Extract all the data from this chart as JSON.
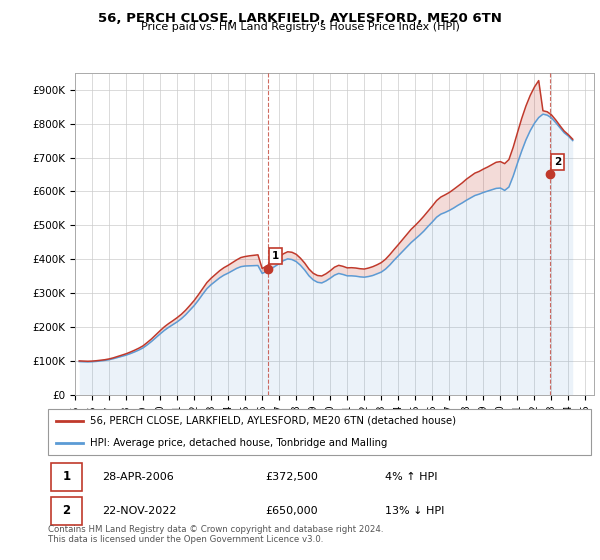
{
  "title": "56, PERCH CLOSE, LARKFIELD, AYLESFORD, ME20 6TN",
  "subtitle": "Price paid vs. HM Land Registry's House Price Index (HPI)",
  "ylabel_ticks": [
    "£0",
    "£100K",
    "£200K",
    "£300K",
    "£400K",
    "£500K",
    "£600K",
    "£700K",
    "£800K",
    "£900K"
  ],
  "ytick_values": [
    0,
    100000,
    200000,
    300000,
    400000,
    500000,
    600000,
    700000,
    800000,
    900000
  ],
  "ylim": [
    0,
    950000
  ],
  "xlim_start": 1995.0,
  "xlim_end": 2025.5,
  "legend_label1": "56, PERCH CLOSE, LARKFIELD, AYLESFORD, ME20 6TN (detached house)",
  "legend_label2": "HPI: Average price, detached house, Tonbridge and Malling",
  "color_red": "#c0392b",
  "color_blue": "#5b9bd5",
  "annotation1_label": "1",
  "annotation1_date": "28-APR-2006",
  "annotation1_price": "£372,500",
  "annotation1_hpi": "4% ↑ HPI",
  "annotation2_label": "2",
  "annotation2_date": "22-NOV-2022",
  "annotation2_price": "£650,000",
  "annotation2_hpi": "13% ↓ HPI",
  "footer": "Contains HM Land Registry data © Crown copyright and database right 2024.\nThis data is licensed under the Open Government Licence v3.0.",
  "hpi_blue": {
    "years": [
      1995.25,
      1995.5,
      1995.75,
      1996.0,
      1996.25,
      1996.5,
      1996.75,
      1997.0,
      1997.25,
      1997.5,
      1997.75,
      1998.0,
      1998.25,
      1998.5,
      1998.75,
      1999.0,
      1999.25,
      1999.5,
      1999.75,
      2000.0,
      2000.25,
      2000.5,
      2000.75,
      2001.0,
      2001.25,
      2001.5,
      2001.75,
      2002.0,
      2002.25,
      2002.5,
      2002.75,
      2003.0,
      2003.25,
      2003.5,
      2003.75,
      2004.0,
      2004.25,
      2004.5,
      2004.75,
      2005.0,
      2005.25,
      2005.5,
      2005.75,
      2006.0,
      2006.25,
      2006.5,
      2006.75,
      2007.0,
      2007.25,
      2007.5,
      2007.75,
      2008.0,
      2008.25,
      2008.5,
      2008.75,
      2009.0,
      2009.25,
      2009.5,
      2009.75,
      2010.0,
      2010.25,
      2010.5,
      2010.75,
      2011.0,
      2011.25,
      2011.5,
      2011.75,
      2012.0,
      2012.25,
      2012.5,
      2012.75,
      2013.0,
      2013.25,
      2013.5,
      2013.75,
      2014.0,
      2014.25,
      2014.5,
      2014.75,
      2015.0,
      2015.25,
      2015.5,
      2015.75,
      2016.0,
      2016.25,
      2016.5,
      2016.75,
      2017.0,
      2017.25,
      2017.5,
      2017.75,
      2018.0,
      2018.25,
      2018.5,
      2018.75,
      2019.0,
      2019.25,
      2019.5,
      2019.75,
      2020.0,
      2020.25,
      2020.5,
      2020.75,
      2021.0,
      2021.25,
      2021.5,
      2021.75,
      2022.0,
      2022.25,
      2022.5,
      2022.75,
      2023.0,
      2023.25,
      2023.5,
      2023.75,
      2024.0,
      2024.25
    ],
    "values": [
      98000,
      97500,
      97000,
      97500,
      98500,
      100000,
      101500,
      103500,
      106500,
      110000,
      113500,
      117000,
      121500,
      126500,
      132000,
      138500,
      147500,
      157500,
      168500,
      179500,
      190000,
      199000,
      207000,
      215000,
      224500,
      236000,
      249500,
      263000,
      279000,
      296500,
      313000,
      325000,
      335000,
      345000,
      353000,
      359000,
      366000,
      373000,
      378000,
      380000,
      380500,
      381000,
      381500,
      358000,
      364000,
      371000,
      379000,
      387000,
      396000,
      401000,
      399000,
      393000,
      382000,
      368000,
      351000,
      339000,
      332000,
      330000,
      336000,
      344000,
      353000,
      358000,
      355000,
      351000,
      351000,
      350000,
      348000,
      347000,
      349000,
      352000,
      357000,
      362000,
      371000,
      383000,
      397000,
      410000,
      423000,
      436000,
      449000,
      460000,
      471000,
      483000,
      497000,
      510000,
      524000,
      533000,
      538000,
      544000,
      551000,
      559000,
      566000,
      574000,
      581000,
      588000,
      592000,
      597000,
      601000,
      605000,
      609000,
      610000,
      603000,
      613000,
      645000,
      683000,
      719000,
      752000,
      779000,
      801000,
      818000,
      828000,
      825000,
      817000,
      803000,
      788000,
      773000,
      763000,
      750000
    ]
  },
  "hpi_red": {
    "years": [
      1995.25,
      1995.5,
      1995.75,
      1996.0,
      1996.25,
      1996.5,
      1996.75,
      1997.0,
      1997.25,
      1997.5,
      1997.75,
      1998.0,
      1998.25,
      1998.5,
      1998.75,
      1999.0,
      1999.25,
      1999.5,
      1999.75,
      2000.0,
      2000.25,
      2000.5,
      2000.75,
      2001.0,
      2001.25,
      2001.5,
      2001.75,
      2002.0,
      2002.25,
      2002.5,
      2002.75,
      2003.0,
      2003.25,
      2003.5,
      2003.75,
      2004.0,
      2004.25,
      2004.5,
      2004.75,
      2005.0,
      2005.25,
      2005.5,
      2005.75,
      2006.0,
      2006.25,
      2006.5,
      2006.75,
      2007.0,
      2007.25,
      2007.5,
      2007.75,
      2008.0,
      2008.25,
      2008.5,
      2008.75,
      2009.0,
      2009.25,
      2009.5,
      2009.75,
      2010.0,
      2010.25,
      2010.5,
      2010.75,
      2011.0,
      2011.25,
      2011.5,
      2011.75,
      2012.0,
      2012.25,
      2012.5,
      2012.75,
      2013.0,
      2013.25,
      2013.5,
      2013.75,
      2014.0,
      2014.25,
      2014.5,
      2014.75,
      2015.0,
      2015.25,
      2015.5,
      2015.75,
      2016.0,
      2016.25,
      2016.5,
      2016.75,
      2017.0,
      2017.25,
      2017.5,
      2017.75,
      2018.0,
      2018.25,
      2018.5,
      2018.75,
      2019.0,
      2019.25,
      2019.5,
      2019.75,
      2020.0,
      2020.25,
      2020.5,
      2020.75,
      2021.0,
      2021.25,
      2021.5,
      2021.75,
      2022.0,
      2022.25,
      2022.5,
      2022.75,
      2023.0,
      2023.25,
      2023.5,
      2023.75,
      2024.0,
      2024.25
    ],
    "values": [
      100000,
      99500,
      99000,
      99500,
      100500,
      102000,
      103500,
      105800,
      109000,
      113000,
      117000,
      121000,
      126000,
      131500,
      137500,
      144500,
      154500,
      165000,
      177000,
      189000,
      200500,
      210000,
      218500,
      227500,
      237500,
      249500,
      263500,
      278000,
      295000,
      313000,
      331000,
      344000,
      355000,
      366000,
      375000,
      382000,
      390000,
      398000,
      405000,
      408000,
      410000,
      411500,
      413000,
      372500,
      379500,
      387500,
      396500,
      406000,
      416000,
      422000,
      420500,
      414500,
      403000,
      388500,
      371000,
      358500,
      352000,
      350500,
      357000,
      366000,
      376500,
      382000,
      379000,
      374500,
      375000,
      374000,
      372000,
      371000,
      374000,
      378000,
      383500,
      390000,
      400000,
      413500,
      428500,
      443000,
      458000,
      473000,
      488000,
      500000,
      513000,
      527000,
      542000,
      557000,
      573000,
      583500,
      590000,
      597000,
      606000,
      615500,
      625000,
      636000,
      645000,
      654000,
      659000,
      666000,
      672000,
      679000,
      686000,
      688000,
      682000,
      694000,
      730000,
      773000,
      815000,
      852000,
      883000,
      908000,
      927000,
      838000,
      835000,
      826000,
      811000,
      794000,
      778000,
      767000,
      754000
    ]
  },
  "sale_points": [
    {
      "year": 2006.32,
      "price": 372500,
      "label": "1"
    },
    {
      "year": 2022.9,
      "price": 650000,
      "label": "2"
    }
  ],
  "vline_years": [
    2006.32,
    2022.9
  ]
}
